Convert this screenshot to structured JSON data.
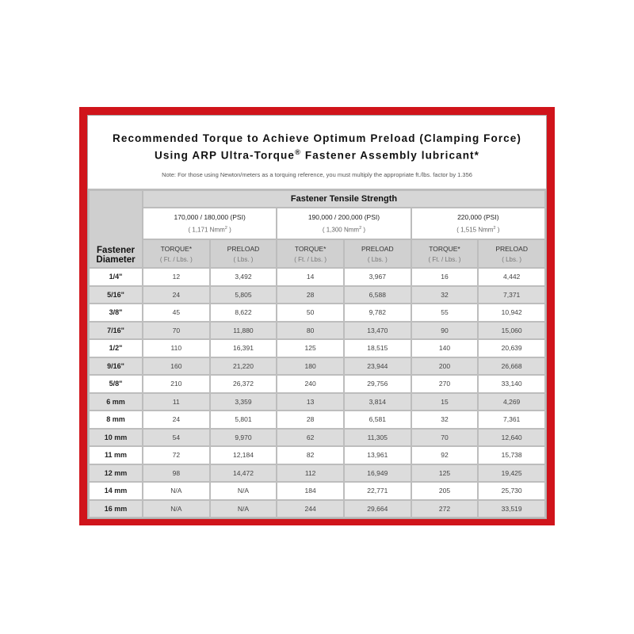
{
  "title_line1": "Recommended Torque to Achieve Optimum Preload (Clamping Force)",
  "title_line2_pre": "Using ARP Ultra-Torque",
  "title_line2_reg": "®",
  "title_line2_post": " Fastener Assembly lubricant*",
  "note": "Note: For those using Newton/meters as a torquing reference, you must multiply the appropriate ft./lbs. factor by 1.356",
  "colors": {
    "frame": "#d0141b",
    "header_bg": "#d6d6d6",
    "alt_row": "#dcdcdc"
  },
  "table": {
    "diameter_header_1": "Fastener",
    "diameter_header_2": "Diameter",
    "group_header": "Fastener Tensile Strength",
    "strengths": [
      {
        "psi": "170,000 / 180,000 (PSI)",
        "nmm_pre": "( 1,171 Nmm",
        "nmm_post": " )"
      },
      {
        "psi": "190,000 / 200,000 (PSI)",
        "nmm_pre": "( 1,300 Nmm",
        "nmm_post": " )"
      },
      {
        "psi": "220,000 (PSI)",
        "nmm_pre": "( 1,515 Nmm",
        "nmm_post": " )"
      }
    ],
    "nmm_exp": "2",
    "torque_label": "TORQUE*",
    "torque_unit": "( Ft. / Lbs. )",
    "preload_label": "PRELOAD",
    "preload_unit": "( Lbs. )",
    "rows": [
      [
        "1/4\"",
        "12",
        "3,492",
        "14",
        "3,967",
        "16",
        "4,442"
      ],
      [
        "5/16\"",
        "24",
        "5,805",
        "28",
        "6,588",
        "32",
        "7,371"
      ],
      [
        "3/8\"",
        "45",
        "8,622",
        "50",
        "9,782",
        "55",
        "10,942"
      ],
      [
        "7/16\"",
        "70",
        "11,880",
        "80",
        "13,470",
        "90",
        "15,060"
      ],
      [
        "1/2\"",
        "110",
        "16,391",
        "125",
        "18,515",
        "140",
        "20,639"
      ],
      [
        "9/16\"",
        "160",
        "21,220",
        "180",
        "23,944",
        "200",
        "26,668"
      ],
      [
        "5/8\"",
        "210",
        "26,372",
        "240",
        "29,756",
        "270",
        "33,140"
      ],
      [
        "6 mm",
        "11",
        "3,359",
        "13",
        "3,814",
        "15",
        "4,269"
      ],
      [
        "8 mm",
        "24",
        "5,801",
        "28",
        "6,581",
        "32",
        "7,361"
      ],
      [
        "10 mm",
        "54",
        "9,970",
        "62",
        "11,305",
        "70",
        "12,640"
      ],
      [
        "11 mm",
        "72",
        "12,184",
        "82",
        "13,961",
        "92",
        "15,738"
      ],
      [
        "12 mm",
        "98",
        "14,472",
        "112",
        "16,949",
        "125",
        "19,425"
      ],
      [
        "14 mm",
        "N/A",
        "N/A",
        "184",
        "22,771",
        "205",
        "25,730"
      ],
      [
        "16 mm",
        "N/A",
        "N/A",
        "244",
        "29,664",
        "272",
        "33,519"
      ]
    ]
  }
}
